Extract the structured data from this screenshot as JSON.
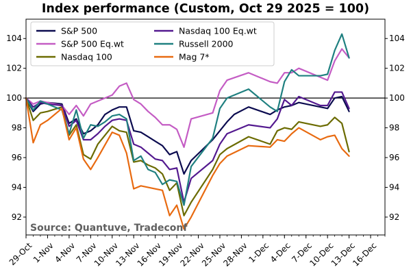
{
  "chart_data": {
    "type": "line",
    "title": "Index performance (Custom, Oct 29 2025 = 100)",
    "annotation": "Source: Quantuve, Tradeconf",
    "reference_line": 100,
    "xlim": [
      "2025-10-29",
      "2025-12-18"
    ],
    "ylim": [
      90.8,
      105.3
    ],
    "yticks": [
      92,
      94,
      96,
      98,
      100,
      102,
      104
    ],
    "xticks": [
      {
        "date": "2025-10-29",
        "label": "29-Oct"
      },
      {
        "date": "2025-11-01",
        "label": "1-Nov"
      },
      {
        "date": "2025-11-04",
        "label": "4-Nov"
      },
      {
        "date": "2025-11-07",
        "label": "7-Nov"
      },
      {
        "date": "2025-11-10",
        "label": "10-Nov"
      },
      {
        "date": "2025-11-13",
        "label": "13-Nov"
      },
      {
        "date": "2025-11-16",
        "label": "16-Nov"
      },
      {
        "date": "2025-11-19",
        "label": "19-Nov"
      },
      {
        "date": "2025-11-22",
        "label": "22-Nov"
      },
      {
        "date": "2025-11-25",
        "label": "25-Nov"
      },
      {
        "date": "2025-11-28",
        "label": "28-Nov"
      },
      {
        "date": "2025-12-01",
        "label": "1-Dec"
      },
      {
        "date": "2025-12-04",
        "label": "4-Dec"
      },
      {
        "date": "2025-12-07",
        "label": "7-Dec"
      },
      {
        "date": "2025-12-10",
        "label": "10-Dec"
      },
      {
        "date": "2025-12-13",
        "label": "13-Dec"
      },
      {
        "date": "2025-12-16",
        "label": "16-Dec"
      }
    ],
    "legend_position": "top-left",
    "series": [
      {
        "name": "S&P 500",
        "color": "#0b0b4f",
        "points": [
          [
            "2025-10-29",
            100
          ],
          [
            "2025-10-30",
            99.1
          ],
          [
            "2025-10-31",
            99.6
          ],
          [
            "2025-11-01",
            99.7
          ],
          [
            "2025-11-02",
            99.65
          ],
          [
            "2025-11-03",
            99.6
          ],
          [
            "2025-11-04",
            98.3
          ],
          [
            "2025-11-05",
            98.6
          ],
          [
            "2025-11-06",
            97.6
          ],
          [
            "2025-11-07",
            97.8
          ],
          [
            "2025-11-08",
            98.2
          ],
          [
            "2025-11-09",
            98.9
          ],
          [
            "2025-11-10",
            99.2
          ],
          [
            "2025-11-11",
            99.4
          ],
          [
            "2025-11-12",
            99.4
          ],
          [
            "2025-11-13",
            97.8
          ],
          [
            "2025-11-14",
            97.7
          ],
          [
            "2025-11-15",
            97.4
          ],
          [
            "2025-11-16",
            97.1
          ],
          [
            "2025-11-17",
            96.8
          ],
          [
            "2025-11-18",
            96.2
          ],
          [
            "2025-11-19",
            96.4
          ],
          [
            "2025-11-20",
            94.9
          ],
          [
            "2025-11-21",
            95.8
          ],
          [
            "2025-11-24",
            97.2
          ],
          [
            "2025-11-25",
            97.8
          ],
          [
            "2025-11-26",
            98.4
          ],
          [
            "2025-11-27",
            98.9
          ],
          [
            "2025-11-29",
            99.4
          ],
          [
            "2025-12-02",
            98.9
          ],
          [
            "2025-12-03",
            99.2
          ],
          [
            "2025-12-04",
            99.4
          ],
          [
            "2025-12-05",
            99.5
          ],
          [
            "2025-12-06",
            99.7
          ],
          [
            "2025-12-09",
            99.4
          ],
          [
            "2025-12-10",
            99.3
          ],
          [
            "2025-12-11",
            100.0
          ],
          [
            "2025-12-12",
            100.1
          ],
          [
            "2025-12-13",
            99.1
          ]
        ]
      },
      {
        "name": "S&P 500 Eq.wt",
        "color": "#c45cc4",
        "points": [
          [
            "2025-10-29",
            100
          ],
          [
            "2025-10-30",
            99.6
          ],
          [
            "2025-10-31",
            99.8
          ],
          [
            "2025-11-01",
            99.7
          ],
          [
            "2025-11-03",
            99.5
          ],
          [
            "2025-11-04",
            98.9
          ],
          [
            "2025-11-05",
            99.5
          ],
          [
            "2025-11-06",
            98.8
          ],
          [
            "2025-11-07",
            99.6
          ],
          [
            "2025-11-08",
            99.8
          ],
          [
            "2025-11-09",
            100.0
          ],
          [
            "2025-11-10",
            100.2
          ],
          [
            "2025-11-11",
            100.8
          ],
          [
            "2025-11-12",
            101.0
          ],
          [
            "2025-11-13",
            99.9
          ],
          [
            "2025-11-14",
            99.6
          ],
          [
            "2025-11-15",
            99.1
          ],
          [
            "2025-11-16",
            98.7
          ],
          [
            "2025-11-17",
            98.2
          ],
          [
            "2025-11-18",
            98.2
          ],
          [
            "2025-11-19",
            97.9
          ],
          [
            "2025-11-20",
            96.7
          ],
          [
            "2025-11-21",
            98.6
          ],
          [
            "2025-11-24",
            99.0
          ],
          [
            "2025-11-25",
            100.5
          ],
          [
            "2025-11-26",
            101.2
          ],
          [
            "2025-11-29",
            101.7
          ],
          [
            "2025-12-02",
            101.1
          ],
          [
            "2025-12-03",
            101.0
          ],
          [
            "2025-12-04",
            101.7
          ],
          [
            "2025-12-05",
            101.7
          ],
          [
            "2025-12-06",
            102.0
          ],
          [
            "2025-12-09",
            101.4
          ],
          [
            "2025-12-10",
            101.2
          ],
          [
            "2025-12-11",
            102.5
          ],
          [
            "2025-12-12",
            103.3
          ],
          [
            "2025-12-13",
            102.7
          ]
        ]
      },
      {
        "name": "Nasdaq 100",
        "color": "#6b6b00",
        "points": [
          [
            "2025-10-29",
            100
          ],
          [
            "2025-10-30",
            98.5
          ],
          [
            "2025-10-31",
            99.0
          ],
          [
            "2025-11-01",
            99.1
          ],
          [
            "2025-11-03",
            99.4
          ],
          [
            "2025-11-04",
            97.5
          ],
          [
            "2025-11-05",
            98.2
          ],
          [
            "2025-11-06",
            96.2
          ],
          [
            "2025-11-07",
            95.9
          ],
          [
            "2025-11-08",
            96.9
          ],
          [
            "2025-11-09",
            97.5
          ],
          [
            "2025-11-10",
            98.1
          ],
          [
            "2025-11-11",
            97.8
          ],
          [
            "2025-11-12",
            97.7
          ],
          [
            "2025-11-13",
            95.7
          ],
          [
            "2025-11-14",
            95.8
          ],
          [
            "2025-11-15",
            95.5
          ],
          [
            "2025-11-16",
            95.3
          ],
          [
            "2025-11-17",
            94.9
          ],
          [
            "2025-11-18",
            93.8
          ],
          [
            "2025-11-19",
            94.3
          ],
          [
            "2025-11-20",
            92.1
          ],
          [
            "2025-11-21",
            93.0
          ],
          [
            "2025-11-24",
            95.2
          ],
          [
            "2025-11-25",
            96.2
          ],
          [
            "2025-11-26",
            96.6
          ],
          [
            "2025-11-29",
            97.4
          ],
          [
            "2025-12-02",
            96.9
          ],
          [
            "2025-12-03",
            97.8
          ],
          [
            "2025-12-04",
            98.0
          ],
          [
            "2025-12-05",
            97.9
          ],
          [
            "2025-12-06",
            98.4
          ],
          [
            "2025-12-09",
            98.1
          ],
          [
            "2025-12-10",
            98.2
          ],
          [
            "2025-12-11",
            98.7
          ],
          [
            "2025-12-12",
            98.3
          ],
          [
            "2025-12-13",
            96.4
          ]
        ]
      },
      {
        "name": "Nasdaq 100 Eq.wt",
        "color": "#53198f",
        "points": [
          [
            "2025-10-29",
            100
          ],
          [
            "2025-10-30",
            99.4
          ],
          [
            "2025-10-31",
            99.7
          ],
          [
            "2025-11-01",
            99.6
          ],
          [
            "2025-11-03",
            99.5
          ],
          [
            "2025-11-04",
            98.1
          ],
          [
            "2025-11-05",
            98.5
          ],
          [
            "2025-11-06",
            97.2
          ],
          [
            "2025-11-07",
            97.2
          ],
          [
            "2025-11-08",
            97.6
          ],
          [
            "2025-11-09",
            98.1
          ],
          [
            "2025-11-10",
            98.5
          ],
          [
            "2025-11-11",
            98.6
          ],
          [
            "2025-11-12",
            98.5
          ],
          [
            "2025-11-13",
            96.9
          ],
          [
            "2025-11-14",
            96.7
          ],
          [
            "2025-11-15",
            96.3
          ],
          [
            "2025-11-16",
            95.9
          ],
          [
            "2025-11-17",
            95.8
          ],
          [
            "2025-11-18",
            95.2
          ],
          [
            "2025-11-19",
            95.3
          ],
          [
            "2025-11-20",
            93.0
          ],
          [
            "2025-11-21",
            94.6
          ],
          [
            "2025-11-24",
            95.8
          ],
          [
            "2025-11-25",
            96.9
          ],
          [
            "2025-11-26",
            97.6
          ],
          [
            "2025-11-29",
            98.2
          ],
          [
            "2025-12-02",
            98.0
          ],
          [
            "2025-12-03",
            98.6
          ],
          [
            "2025-12-04",
            99.9
          ],
          [
            "2025-12-05",
            99.5
          ],
          [
            "2025-12-06",
            100.1
          ],
          [
            "2025-12-09",
            99.5
          ],
          [
            "2025-12-10",
            99.5
          ],
          [
            "2025-12-11",
            100.4
          ],
          [
            "2025-12-12",
            100.4
          ],
          [
            "2025-12-13",
            99.3
          ]
        ]
      },
      {
        "name": "Russell 2000",
        "color": "#1f8080",
        "points": [
          [
            "2025-10-29",
            100
          ],
          [
            "2025-10-30",
            99.2
          ],
          [
            "2025-10-31",
            99.8
          ],
          [
            "2025-11-01",
            99.6
          ],
          [
            "2025-11-03",
            99.2
          ],
          [
            "2025-11-04",
            97.6
          ],
          [
            "2025-11-05",
            99.2
          ],
          [
            "2025-11-06",
            97.3
          ],
          [
            "2025-11-07",
            98.2
          ],
          [
            "2025-11-08",
            98.1
          ],
          [
            "2025-11-09",
            98.4
          ],
          [
            "2025-11-10",
            98.8
          ],
          [
            "2025-11-11",
            98.9
          ],
          [
            "2025-11-12",
            98.6
          ],
          [
            "2025-11-13",
            95.8
          ],
          [
            "2025-11-14",
            96.1
          ],
          [
            "2025-11-15",
            95.2
          ],
          [
            "2025-11-16",
            95.0
          ],
          [
            "2025-11-17",
            94.2
          ],
          [
            "2025-11-18",
            94.5
          ],
          [
            "2025-11-19",
            94.4
          ],
          [
            "2025-11-20",
            92.8
          ],
          [
            "2025-11-21",
            95.4
          ],
          [
            "2025-11-24",
            97.3
          ],
          [
            "2025-11-25",
            99.3
          ],
          [
            "2025-11-26",
            100.0
          ],
          [
            "2025-11-29",
            100.6
          ],
          [
            "2025-12-02",
            99.4
          ],
          [
            "2025-12-03",
            99.1
          ],
          [
            "2025-12-04",
            101.1
          ],
          [
            "2025-12-05",
            101.9
          ],
          [
            "2025-12-06",
            101.5
          ],
          [
            "2025-12-09",
            101.5
          ],
          [
            "2025-12-10",
            101.6
          ],
          [
            "2025-12-11",
            103.2
          ],
          [
            "2025-12-12",
            104.3
          ],
          [
            "2025-12-13",
            102.7
          ]
        ]
      },
      {
        "name": "Mag 7*",
        "color": "#e86a10",
        "points": [
          [
            "2025-10-29",
            100
          ],
          [
            "2025-10-30",
            97.0
          ],
          [
            "2025-10-31",
            98.2
          ],
          [
            "2025-11-01",
            98.5
          ],
          [
            "2025-11-03",
            99.3
          ],
          [
            "2025-11-04",
            97.2
          ],
          [
            "2025-11-05",
            98.0
          ],
          [
            "2025-11-06",
            95.9
          ],
          [
            "2025-11-07",
            95.2
          ],
          [
            "2025-11-08",
            96.0
          ],
          [
            "2025-11-10",
            97.7
          ],
          [
            "2025-11-11",
            97.5
          ],
          [
            "2025-11-12",
            96.3
          ],
          [
            "2025-11-13",
            93.9
          ],
          [
            "2025-11-14",
            94.1
          ],
          [
            "2025-11-16",
            93.9
          ],
          [
            "2025-11-17",
            93.8
          ],
          [
            "2025-11-18",
            92.1
          ],
          [
            "2025-11-19",
            92.8
          ],
          [
            "2025-11-20",
            91.2
          ],
          [
            "2025-11-21",
            92.0
          ],
          [
            "2025-11-24",
            94.8
          ],
          [
            "2025-11-25",
            95.6
          ],
          [
            "2025-11-26",
            96.1
          ],
          [
            "2025-11-29",
            96.8
          ],
          [
            "2025-12-02",
            96.7
          ],
          [
            "2025-12-03",
            97.2
          ],
          [
            "2025-12-04",
            97.1
          ],
          [
            "2025-12-05",
            97.6
          ],
          [
            "2025-12-06",
            98.0
          ],
          [
            "2025-12-09",
            97.2
          ],
          [
            "2025-12-10",
            97.4
          ],
          [
            "2025-12-11",
            97.5
          ],
          [
            "2025-12-12",
            96.6
          ],
          [
            "2025-12-13",
            96.1
          ]
        ]
      }
    ]
  }
}
